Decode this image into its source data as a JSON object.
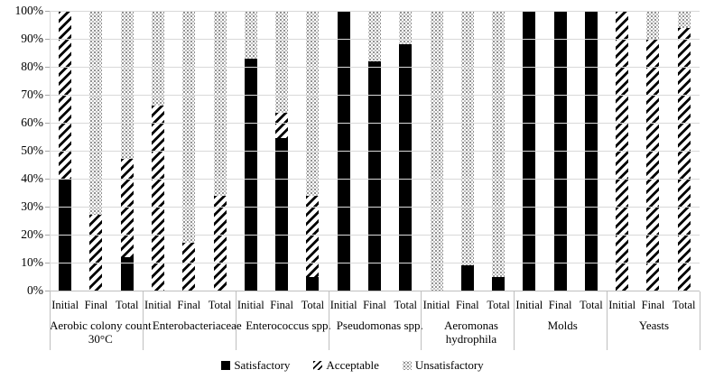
{
  "chart_data": {
    "type": "bar",
    "subtype": "stacked-percent",
    "title": "",
    "xlabel": "",
    "ylabel": "",
    "ylim": [
      0,
      100
    ],
    "ytick_step": 10,
    "ytick_labels": [
      "0%",
      "10%",
      "20%",
      "30%",
      "40%",
      "50%",
      "60%",
      "70%",
      "80%",
      "90%",
      "100%"
    ],
    "grid": true,
    "legend_position": "bottom",
    "series_order": [
      "Satisfactory",
      "Acceptable",
      "Unsatisfactory"
    ],
    "bar_labels": [
      "Initial",
      "Final",
      "Total"
    ],
    "groups": [
      {
        "label": "Aerobic colony count\n30°C",
        "bars": [
          {
            "label": "Initial",
            "Satisfactory": 40,
            "Acceptable": 60,
            "Unsatisfactory": 0
          },
          {
            "label": "Final",
            "Satisfactory": 0,
            "Acceptable": 27,
            "Unsatisfactory": 73
          },
          {
            "label": "Total",
            "Satisfactory": 12,
            "Acceptable": 35,
            "Unsatisfactory": 53
          }
        ]
      },
      {
        "label": "Enterobacteriaceae",
        "bars": [
          {
            "label": "Initial",
            "Satisfactory": 0,
            "Acceptable": 66,
            "Unsatisfactory": 34
          },
          {
            "label": "Final",
            "Satisfactory": 0,
            "Acceptable": 17,
            "Unsatisfactory": 83
          },
          {
            "label": "Total",
            "Satisfactory": 0,
            "Acceptable": 34,
            "Unsatisfactory": 66
          }
        ]
      },
      {
        "label": "Enterococcus spp.",
        "bars": [
          {
            "label": "Initial",
            "Satisfactory": 83,
            "Acceptable": 0,
            "Unsatisfactory": 17
          },
          {
            "label": "Final",
            "Satisfactory": 54.5,
            "Acceptable": 9,
            "Unsatisfactory": 36.5
          },
          {
            "label": "Total",
            "Satisfactory": 5,
            "Acceptable": 29,
            "Unsatisfactory": 66
          }
        ]
      },
      {
        "label": "Pseudomonas spp.",
        "bars": [
          {
            "label": "Initial",
            "Satisfactory": 100,
            "Acceptable": 0,
            "Unsatisfactory": 0
          },
          {
            "label": "Final",
            "Satisfactory": 82,
            "Acceptable": 0,
            "Unsatisfactory": 18
          },
          {
            "label": "Total",
            "Satisfactory": 88,
            "Acceptable": 0,
            "Unsatisfactory": 12
          }
        ]
      },
      {
        "label": "Aeromonas\nhydrophila",
        "bars": [
          {
            "label": "Initial",
            "Satisfactory": 0,
            "Acceptable": 0,
            "Unsatisfactory": 100
          },
          {
            "label": "Final",
            "Satisfactory": 9,
            "Acceptable": 0,
            "Unsatisfactory": 91
          },
          {
            "label": "Total",
            "Satisfactory": 5,
            "Acceptable": 0,
            "Unsatisfactory": 95
          }
        ]
      },
      {
        "label": "Molds",
        "bars": [
          {
            "label": "Initial",
            "Satisfactory": 100,
            "Acceptable": 0,
            "Unsatisfactory": 0
          },
          {
            "label": "Final",
            "Satisfactory": 100,
            "Acceptable": 0,
            "Unsatisfactory": 0
          },
          {
            "label": "Total",
            "Satisfactory": 100,
            "Acceptable": 0,
            "Unsatisfactory": 0
          }
        ]
      },
      {
        "label": "Yeasts",
        "bars": [
          {
            "label": "Initial",
            "Satisfactory": 0,
            "Acceptable": 100,
            "Unsatisfactory": 0
          },
          {
            "label": "Final",
            "Satisfactory": 0,
            "Acceptable": 90,
            "Unsatisfactory": 10
          },
          {
            "label": "Total",
            "Satisfactory": 0,
            "Acceptable": 94,
            "Unsatisfactory": 6
          }
        ]
      }
    ],
    "legend": [
      {
        "label": "Satisfactory",
        "marker": "solid-black-square"
      },
      {
        "label": "Acceptable",
        "marker": "diagonal-hatch-square"
      },
      {
        "label": "Unsatisfactory",
        "marker": "dotted-square"
      }
    ]
  },
  "colors": {
    "bar_fill": "#000000",
    "gridline": "#d9d9d9",
    "axis_line": "#bfbfbf",
    "text": "#000000",
    "dot_pattern": "#8c8c8c"
  }
}
